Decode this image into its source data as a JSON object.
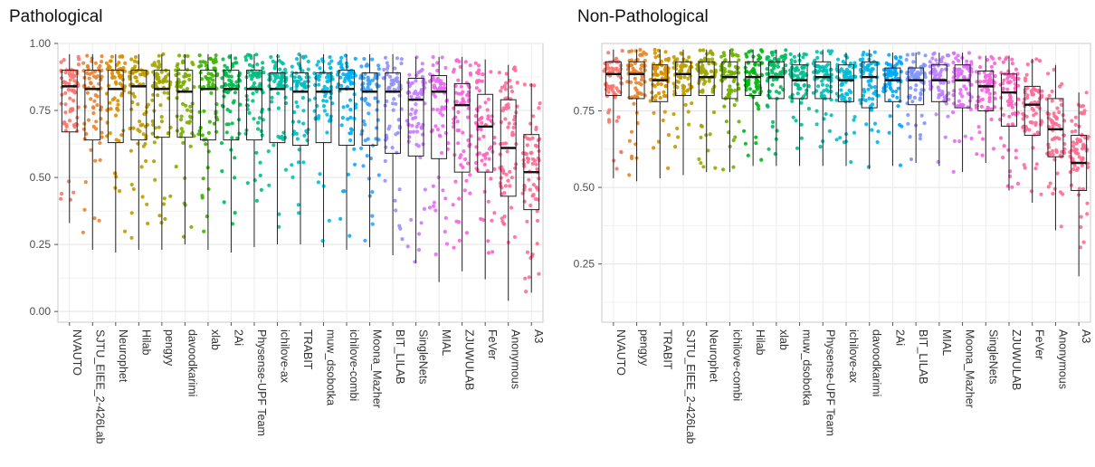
{
  "chart_data": [
    {
      "type": "box",
      "title": "Pathological",
      "xlabel": "",
      "ylabel": "",
      "ylim": [
        -0.04,
        1.0
      ],
      "yticks": [
        0.0,
        0.25,
        0.5,
        0.75,
        1.0
      ],
      "ytick_labels": [
        "0.00",
        "0.25",
        "0.50",
        "0.75",
        "1.00"
      ],
      "grid": true,
      "legend": "none",
      "categories": [
        "NVAUTO",
        "SJTU_EIEE_2-426Lab",
        "Neurophet",
        "Hilab",
        "pengyy",
        "davoodkarimi",
        "xlab",
        "2Ai",
        "Physense-UPF Team",
        "ichilove-ax",
        "TRABIT",
        "muw_dsobotka",
        "ichilove-combi",
        "Moona_Mazher",
        "BIT_LILAB",
        "SingleNets",
        "MIAL",
        "ZJUWULAB",
        "FeVer",
        "Anonymous",
        "A3"
      ],
      "colors": [
        "#F8766D",
        "#EA8331",
        "#D89000",
        "#C09B00",
        "#A3A500",
        "#7CAE00",
        "#39B600",
        "#00BB4E",
        "#00BF7D",
        "#00C1A3",
        "#00BFC4",
        "#00BAE0",
        "#00B0F6",
        "#35A2FF",
        "#9590FF",
        "#C77CFF",
        "#E76BF3",
        "#FA62DB",
        "#FF62BC",
        "#FF6A98",
        "#FF6C91"
      ],
      "boxes": [
        {
          "whisker_low": 0.33,
          "q1": 0.67,
          "median": 0.84,
          "q3": 0.9,
          "whisker_high": 0.96
        },
        {
          "whisker_low": 0.23,
          "q1": 0.64,
          "median": 0.83,
          "q3": 0.9,
          "whisker_high": 0.96
        },
        {
          "whisker_low": 0.22,
          "q1": 0.63,
          "median": 0.83,
          "q3": 0.9,
          "whisker_high": 0.96
        },
        {
          "whisker_low": 0.23,
          "q1": 0.64,
          "median": 0.84,
          "q3": 0.9,
          "whisker_high": 0.96
        },
        {
          "whisker_low": 0.23,
          "q1": 0.65,
          "median": 0.83,
          "q3": 0.9,
          "whisker_high": 0.96
        },
        {
          "whisker_low": 0.25,
          "q1": 0.65,
          "median": 0.82,
          "q3": 0.9,
          "whisker_high": 0.96
        },
        {
          "whisker_low": 0.23,
          "q1": 0.64,
          "median": 0.83,
          "q3": 0.9,
          "whisker_high": 0.96
        },
        {
          "whisker_low": 0.22,
          "q1": 0.64,
          "median": 0.83,
          "q3": 0.9,
          "whisker_high": 0.96
        },
        {
          "whisker_low": 0.24,
          "q1": 0.64,
          "median": 0.83,
          "q3": 0.9,
          "whisker_high": 0.96
        },
        {
          "whisker_low": 0.25,
          "q1": 0.63,
          "median": 0.83,
          "q3": 0.89,
          "whisker_high": 0.96
        },
        {
          "whisker_low": 0.25,
          "q1": 0.62,
          "median": 0.82,
          "q3": 0.89,
          "whisker_high": 0.96
        },
        {
          "whisker_low": 0.24,
          "q1": 0.63,
          "median": 0.82,
          "q3": 0.89,
          "whisker_high": 0.96
        },
        {
          "whisker_low": 0.23,
          "q1": 0.62,
          "median": 0.83,
          "q3": 0.9,
          "whisker_high": 0.96
        },
        {
          "whisker_low": 0.24,
          "q1": 0.62,
          "median": 0.82,
          "q3": 0.89,
          "whisker_high": 0.96
        },
        {
          "whisker_low": 0.21,
          "q1": 0.59,
          "median": 0.82,
          "q3": 0.89,
          "whisker_high": 0.96
        },
        {
          "whisker_low": 0.18,
          "q1": 0.58,
          "median": 0.79,
          "q3": 0.87,
          "whisker_high": 0.95
        },
        {
          "whisker_low": 0.11,
          "q1": 0.57,
          "median": 0.82,
          "q3": 0.88,
          "whisker_high": 0.95
        },
        {
          "whisker_low": 0.15,
          "q1": 0.52,
          "median": 0.77,
          "q3": 0.85,
          "whisker_high": 0.95
        },
        {
          "whisker_low": 0.12,
          "q1": 0.52,
          "median": 0.69,
          "q3": 0.81,
          "whisker_high": 0.94
        },
        {
          "whisker_low": 0.04,
          "q1": 0.43,
          "median": 0.61,
          "q3": 0.79,
          "whisker_high": 0.92
        },
        {
          "whisker_low": 0.07,
          "q1": 0.38,
          "median": 0.52,
          "q3": 0.66,
          "whisker_high": 0.85
        }
      ]
    },
    {
      "type": "box",
      "title": "Non-Pathological",
      "xlabel": "",
      "ylabel": "",
      "ylim": [
        0.06,
        0.97
      ],
      "yticks": [
        0.25,
        0.5,
        0.75
      ],
      "ytick_labels": [
        "0.25",
        "0.50",
        "0.75"
      ],
      "grid": true,
      "legend": "none",
      "categories": [
        "NVAUTO",
        "pengyy",
        "TRABIT",
        "SJTU_EIEE_2-426Lab",
        "Neurophet",
        "ichilove-combi",
        "Hilab",
        "xlab",
        "muw_dsobotka",
        "Physense-UPF Team",
        "ichilove-ax",
        "davoodkarimi",
        "2Ai",
        "BIT_LILAB",
        "MIAL",
        "Moona_Mazher",
        "SingleNets",
        "ZJUWULAB",
        "FeVer",
        "Anonymous",
        "A3"
      ],
      "colors": [
        "#F8766D",
        "#E9842C",
        "#D69100",
        "#BC9D00",
        "#9CA700",
        "#6FB000",
        "#00B813",
        "#00BD61",
        "#00C08E",
        "#00C0B4",
        "#00BDD4",
        "#00B5EE",
        "#00A7FF",
        "#7F96FF",
        "#BC81FF",
        "#E26EF7",
        "#F863DF",
        "#FF62BF",
        "#FF6A9A",
        "#FF6C91",
        "#FF6C91"
      ],
      "boxes": [
        {
          "whisker_low": 0.53,
          "q1": 0.8,
          "median": 0.87,
          "q3": 0.91,
          "whisker_high": 0.95
        },
        {
          "whisker_low": 0.52,
          "q1": 0.79,
          "median": 0.87,
          "q3": 0.91,
          "whisker_high": 0.95
        },
        {
          "whisker_low": 0.53,
          "q1": 0.78,
          "median": 0.85,
          "q3": 0.9,
          "whisker_high": 0.95
        },
        {
          "whisker_low": 0.54,
          "q1": 0.8,
          "median": 0.87,
          "q3": 0.91,
          "whisker_high": 0.95
        },
        {
          "whisker_low": 0.55,
          "q1": 0.8,
          "median": 0.86,
          "q3": 0.91,
          "whisker_high": 0.95
        },
        {
          "whisker_low": 0.55,
          "q1": 0.79,
          "median": 0.86,
          "q3": 0.91,
          "whisker_high": 0.95
        },
        {
          "whisker_low": 0.57,
          "q1": 0.8,
          "median": 0.86,
          "q3": 0.91,
          "whisker_high": 0.95
        },
        {
          "whisker_low": 0.57,
          "q1": 0.79,
          "median": 0.86,
          "q3": 0.91,
          "whisker_high": 0.95
        },
        {
          "whisker_low": 0.57,
          "q1": 0.79,
          "median": 0.85,
          "q3": 0.9,
          "whisker_high": 0.94
        },
        {
          "whisker_low": 0.57,
          "q1": 0.79,
          "median": 0.86,
          "q3": 0.91,
          "whisker_high": 0.95
        },
        {
          "whisker_low": 0.57,
          "q1": 0.78,
          "median": 0.85,
          "q3": 0.9,
          "whisker_high": 0.94
        },
        {
          "whisker_low": 0.56,
          "q1": 0.76,
          "median": 0.86,
          "q3": 0.91,
          "whisker_high": 0.95
        },
        {
          "whisker_low": 0.57,
          "q1": 0.78,
          "median": 0.85,
          "q3": 0.89,
          "whisker_high": 0.94
        },
        {
          "whisker_low": 0.58,
          "q1": 0.77,
          "median": 0.85,
          "q3": 0.89,
          "whisker_high": 0.94
        },
        {
          "whisker_low": 0.57,
          "q1": 0.78,
          "median": 0.85,
          "q3": 0.9,
          "whisker_high": 0.94
        },
        {
          "whisker_low": 0.55,
          "q1": 0.76,
          "median": 0.85,
          "q3": 0.9,
          "whisker_high": 0.94
        },
        {
          "whisker_low": 0.58,
          "q1": 0.75,
          "median": 0.83,
          "q3": 0.88,
          "whisker_high": 0.93
        },
        {
          "whisker_low": 0.49,
          "q1": 0.7,
          "median": 0.81,
          "q3": 0.87,
          "whisker_high": 0.93
        },
        {
          "whisker_low": 0.45,
          "q1": 0.67,
          "median": 0.77,
          "q3": 0.83,
          "whisker_high": 0.92
        },
        {
          "whisker_low": 0.36,
          "q1": 0.6,
          "median": 0.69,
          "q3": 0.79,
          "whisker_high": 0.9
        },
        {
          "whisker_low": 0.21,
          "q1": 0.49,
          "median": 0.58,
          "q3": 0.67,
          "whisker_high": 0.81
        }
      ]
    }
  ]
}
